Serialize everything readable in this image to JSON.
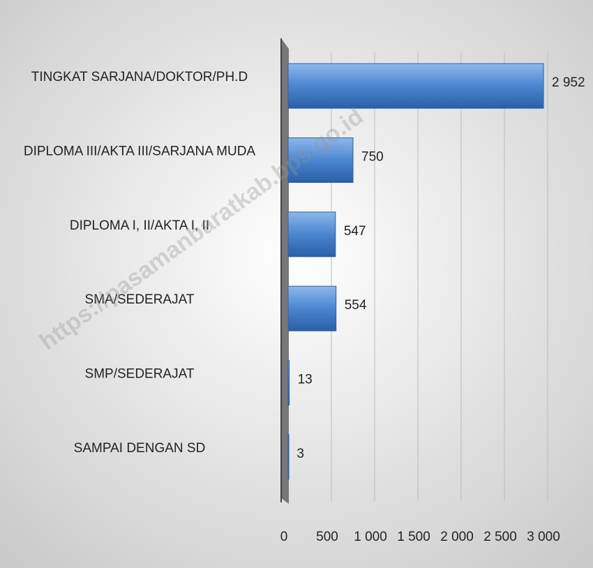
{
  "chart_data": {
    "type": "bar",
    "orientation": "horizontal",
    "watermark": "https://pasamanbaratkab.bps.go.id",
    "categories": [
      "TINGKAT SARJANA/DOKTOR/PH.D",
      "DIPLOMA III/AKTA III/SARJANA MUDA",
      "DIPLOMA I, II/AKTA I, II",
      "SMA/SEDERAJAT",
      "SMP/SEDERAJAT",
      "SAMPAI DENGAN SD"
    ],
    "values": [
      2952,
      750,
      547,
      554,
      13,
      3
    ],
    "value_labels": [
      "2 952",
      "750",
      "547",
      "554",
      "13",
      "3"
    ],
    "color": "#4a86d0",
    "xlim": [
      0,
      3000
    ],
    "xticks": [
      0,
      500,
      {
        "value": 1000,
        "label": "1 000"
      },
      {
        "value": 1500,
        "label": "1 500"
      },
      {
        "value": 2000,
        "label": "2 000"
      },
      {
        "value": 2500,
        "label": "2 500"
      },
      {
        "value": 3000,
        "label": "3 000"
      }
    ],
    "grid": true
  }
}
